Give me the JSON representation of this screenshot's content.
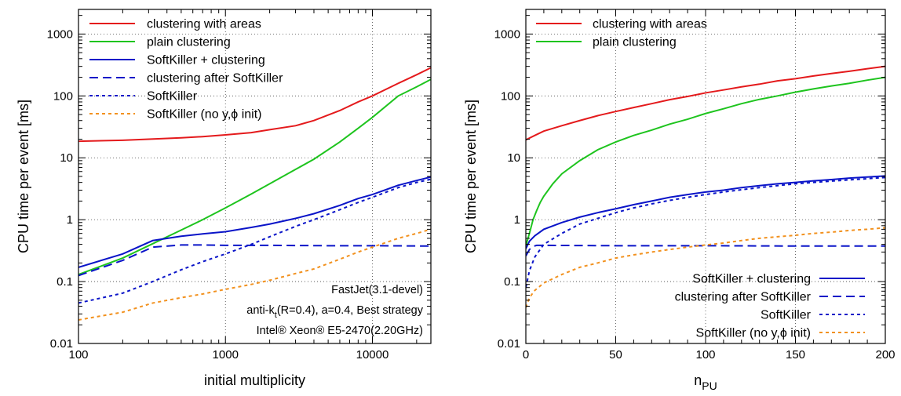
{
  "colors": {
    "red": "#e41a1c",
    "green": "#1ec41e",
    "blue": "#0a14c8",
    "orange": "#f2911e",
    "grid": "#444444"
  },
  "chart_data": [
    {
      "type": "line",
      "xscale": "log",
      "yscale": "log",
      "xlim": [
        100,
        25000
      ],
      "ylim": [
        0.01,
        2500
      ],
      "xlabel": "initial multiplicity",
      "ylabel": "CPU time per event [ms]",
      "grid": true,
      "legend_position": "top-left",
      "x_ticks": [
        {
          "value": 100,
          "label": "100"
        },
        {
          "value": 1000,
          "label": "1000"
        },
        {
          "value": 10000,
          "label": "10000"
        }
      ],
      "y_ticks": [
        {
          "value": 0.01,
          "label": "0.01"
        },
        {
          "value": 0.1,
          "label": "0.1"
        },
        {
          "value": 1,
          "label": "1"
        },
        {
          "value": 10,
          "label": "10"
        },
        {
          "value": 100,
          "label": "100"
        },
        {
          "value": 1000,
          "label": "1000"
        }
      ],
      "annotations": [
        {
          "id": "fastjet",
          "text": "FastJet(3.1-devel)"
        },
        {
          "id": "algo",
          "text": "anti-k",
          "sub": "t",
          "rest": "(R=0.4), a=0.4, Best strategy"
        },
        {
          "id": "cpu",
          "text": "Intel® Xeon® E5-2470(2.20GHz)"
        }
      ],
      "series": [
        {
          "name": "clustering with areas",
          "color": "red",
          "dash": "solid",
          "points": [
            [
              100,
              18.5
            ],
            [
              200,
              19.2
            ],
            [
              300,
              20
            ],
            [
              500,
              21
            ],
            [
              700,
              22
            ],
            [
              1000,
              23.5
            ],
            [
              1500,
              25.5
            ],
            [
              2000,
              28.5
            ],
            [
              3000,
              33
            ],
            [
              4000,
              40
            ],
            [
              6000,
              58
            ],
            [
              8000,
              80
            ],
            [
              10000,
              100
            ],
            [
              15000,
              160
            ],
            [
              20000,
              220
            ],
            [
              25000,
              285
            ]
          ]
        },
        {
          "name": "plain clustering",
          "color": "green",
          "dash": "solid",
          "points": [
            [
              100,
              0.13
            ],
            [
              200,
              0.24
            ],
            [
              300,
              0.38
            ],
            [
              500,
              0.68
            ],
            [
              700,
              1.0
            ],
            [
              1000,
              1.55
            ],
            [
              1500,
              2.6
            ],
            [
              2000,
              3.8
            ],
            [
              3000,
              6.5
            ],
            [
              4000,
              9.5
            ],
            [
              6000,
              18
            ],
            [
              8000,
              30
            ],
            [
              10000,
              45
            ],
            [
              15000,
              100
            ],
            [
              20000,
              140
            ],
            [
              25000,
              185
            ]
          ]
        },
        {
          "name": "SoftKiller + clustering",
          "color": "blue",
          "dash": "solid",
          "points": [
            [
              100,
              0.17
            ],
            [
              200,
              0.28
            ],
            [
              320,
              0.46
            ],
            [
              500,
              0.54
            ],
            [
              700,
              0.59
            ],
            [
              1000,
              0.64
            ],
            [
              1500,
              0.75
            ],
            [
              2000,
              0.85
            ],
            [
              3000,
              1.05
            ],
            [
              4000,
              1.25
            ],
            [
              6000,
              1.7
            ],
            [
              8000,
              2.2
            ],
            [
              10000,
              2.55
            ],
            [
              15000,
              3.6
            ],
            [
              20000,
              4.3
            ],
            [
              25000,
              4.9
            ]
          ]
        },
        {
          "name": "clustering after SoftKiller",
          "color": "blue",
          "dash": "long",
          "points": [
            [
              100,
              0.125
            ],
            [
              200,
              0.22
            ],
            [
              320,
              0.36
            ],
            [
              500,
              0.39
            ],
            [
              700,
              0.39
            ],
            [
              1000,
              0.385
            ],
            [
              2000,
              0.385
            ],
            [
              5000,
              0.38
            ],
            [
              10000,
              0.38
            ],
            [
              25000,
              0.375
            ]
          ]
        },
        {
          "name": "SoftKiller",
          "color": "blue",
          "dash": "short",
          "points": [
            [
              100,
              0.045
            ],
            [
              200,
              0.065
            ],
            [
              320,
              0.1
            ],
            [
              500,
              0.155
            ],
            [
              700,
              0.21
            ],
            [
              1000,
              0.28
            ],
            [
              1500,
              0.4
            ],
            [
              2000,
              0.53
            ],
            [
              3000,
              0.78
            ],
            [
              4000,
              1.0
            ],
            [
              6000,
              1.45
            ],
            [
              8000,
              1.9
            ],
            [
              10000,
              2.3
            ],
            [
              15000,
              3.3
            ],
            [
              20000,
              4.0
            ],
            [
              25000,
              4.5
            ]
          ]
        },
        {
          "name": "SoftKiller (no y,ϕ init)",
          "color": "orange",
          "dash": "short",
          "points": [
            [
              100,
              0.024
            ],
            [
              200,
              0.032
            ],
            [
              320,
              0.045
            ],
            [
              500,
              0.055
            ],
            [
              700,
              0.063
            ],
            [
              1000,
              0.075
            ],
            [
              1500,
              0.09
            ],
            [
              2000,
              0.105
            ],
            [
              3000,
              0.135
            ],
            [
              4000,
              0.16
            ],
            [
              6000,
              0.23
            ],
            [
              8000,
              0.3
            ],
            [
              10000,
              0.36
            ],
            [
              15000,
              0.5
            ],
            [
              20000,
              0.6
            ],
            [
              25000,
              0.7
            ]
          ]
        }
      ]
    },
    {
      "type": "line",
      "xscale": "linear",
      "yscale": "log",
      "xlim": [
        0,
        200
      ],
      "ylim": [
        0.01,
        2500
      ],
      "xlabel": "n",
      "xlabel_sub": "PU",
      "ylabel": "CPU time per event [ms]",
      "grid": true,
      "legend_position": "top-left",
      "legend2_position": "bottom-right",
      "x_ticks": [
        {
          "value": 0,
          "label": "0"
        },
        {
          "value": 50,
          "label": "50"
        },
        {
          "value": 100,
          "label": "100"
        },
        {
          "value": 150,
          "label": "150"
        },
        {
          "value": 200,
          "label": "200"
        }
      ],
      "y_ticks": [
        {
          "value": 0.01,
          "label": "0.01"
        },
        {
          "value": 0.1,
          "label": "0.1"
        },
        {
          "value": 1,
          "label": "1"
        },
        {
          "value": 10,
          "label": "10"
        },
        {
          "value": 100,
          "label": "100"
        },
        {
          "value": 1000,
          "label": "1000"
        }
      ],
      "series": [
        {
          "name": "clustering with areas",
          "color": "red",
          "dash": "solid",
          "legend": 1,
          "points": [
            [
              0,
              19.5
            ],
            [
              5,
              23
            ],
            [
              10,
              27
            ],
            [
              20,
              33
            ],
            [
              30,
              40
            ],
            [
              40,
              48
            ],
            [
              50,
              56
            ],
            [
              60,
              65
            ],
            [
              70,
              75
            ],
            [
              80,
              87
            ],
            [
              90,
              98
            ],
            [
              100,
              112
            ],
            [
              110,
              125
            ],
            [
              120,
              140
            ],
            [
              130,
              155
            ],
            [
              140,
              175
            ],
            [
              150,
              190
            ],
            [
              160,
              210
            ],
            [
              170,
              230
            ],
            [
              180,
              250
            ],
            [
              190,
              275
            ],
            [
              200,
              300
            ]
          ]
        },
        {
          "name": "plain clustering",
          "color": "green",
          "dash": "solid",
          "legend": 1,
          "points": [
            [
              0,
              0.38
            ],
            [
              2,
              0.6
            ],
            [
              4,
              1.0
            ],
            [
              6,
              1.4
            ],
            [
              8,
              1.9
            ],
            [
              10,
              2.4
            ],
            [
              15,
              3.8
            ],
            [
              20,
              5.5
            ],
            [
              30,
              9
            ],
            [
              40,
              13.5
            ],
            [
              50,
              18
            ],
            [
              60,
              23
            ],
            [
              70,
              28
            ],
            [
              80,
              35
            ],
            [
              90,
              42
            ],
            [
              100,
              52
            ],
            [
              110,
              62
            ],
            [
              120,
              75
            ],
            [
              130,
              88
            ],
            [
              140,
              100
            ],
            [
              150,
              115
            ],
            [
              160,
              130
            ],
            [
              170,
              145
            ],
            [
              180,
              160
            ],
            [
              190,
              180
            ],
            [
              200,
              200
            ]
          ]
        },
        {
          "name": "SoftKiller + clustering",
          "color": "blue",
          "dash": "solid",
          "legend": 2,
          "points": [
            [
              0,
              0.34
            ],
            [
              2,
              0.45
            ],
            [
              5,
              0.55
            ],
            [
              10,
              0.7
            ],
            [
              20,
              0.9
            ],
            [
              30,
              1.1
            ],
            [
              40,
              1.3
            ],
            [
              50,
              1.5
            ],
            [
              60,
              1.75
            ],
            [
              70,
              2.0
            ],
            [
              80,
              2.3
            ],
            [
              90,
              2.55
            ],
            [
              100,
              2.8
            ],
            [
              110,
              3.0
            ],
            [
              120,
              3.3
            ],
            [
              130,
              3.55
            ],
            [
              140,
              3.8
            ],
            [
              150,
              4.0
            ],
            [
              160,
              4.25
            ],
            [
              170,
              4.45
            ],
            [
              180,
              4.7
            ],
            [
              190,
              4.9
            ],
            [
              200,
              5.1
            ]
          ]
        },
        {
          "name": "clustering after SoftKiller",
          "color": "blue",
          "dash": "long",
          "legend": 2,
          "points": [
            [
              0,
              0.26
            ],
            [
              2,
              0.33
            ],
            [
              4,
              0.37
            ],
            [
              6,
              0.385
            ],
            [
              10,
              0.385
            ],
            [
              50,
              0.38
            ],
            [
              100,
              0.38
            ],
            [
              150,
              0.375
            ],
            [
              200,
              0.375
            ]
          ]
        },
        {
          "name": "SoftKiller",
          "color": "blue",
          "dash": "short",
          "legend": 2,
          "points": [
            [
              0,
              0.08
            ],
            [
              2,
              0.15
            ],
            [
              5,
              0.25
            ],
            [
              10,
              0.4
            ],
            [
              20,
              0.6
            ],
            [
              30,
              0.85
            ],
            [
              40,
              1.05
            ],
            [
              50,
              1.3
            ],
            [
              60,
              1.55
            ],
            [
              70,
              1.8
            ],
            [
              80,
              2.05
            ],
            [
              90,
              2.3
            ],
            [
              100,
              2.55
            ],
            [
              110,
              2.8
            ],
            [
              120,
              3.05
            ],
            [
              130,
              3.3
            ],
            [
              140,
              3.55
            ],
            [
              150,
              3.8
            ],
            [
              160,
              4.0
            ],
            [
              170,
              4.2
            ],
            [
              180,
              4.4
            ],
            [
              190,
              4.6
            ],
            [
              200,
              4.8
            ]
          ]
        },
        {
          "name": "SoftKiller (no y,ϕ init)",
          "color": "orange",
          "dash": "short",
          "legend": 2,
          "points": [
            [
              0,
              0.038
            ],
            [
              2,
              0.055
            ],
            [
              5,
              0.072
            ],
            [
              10,
              0.095
            ],
            [
              20,
              0.13
            ],
            [
              30,
              0.17
            ],
            [
              40,
              0.2
            ],
            [
              50,
              0.24
            ],
            [
              60,
              0.27
            ],
            [
              70,
              0.3
            ],
            [
              80,
              0.33
            ],
            [
              90,
              0.36
            ],
            [
              100,
              0.39
            ],
            [
              110,
              0.42
            ],
            [
              120,
              0.46
            ],
            [
              130,
              0.5
            ],
            [
              140,
              0.53
            ],
            [
              150,
              0.56
            ],
            [
              160,
              0.6
            ],
            [
              170,
              0.63
            ],
            [
              180,
              0.67
            ],
            [
              190,
              0.7
            ],
            [
              200,
              0.74
            ]
          ]
        }
      ]
    }
  ]
}
